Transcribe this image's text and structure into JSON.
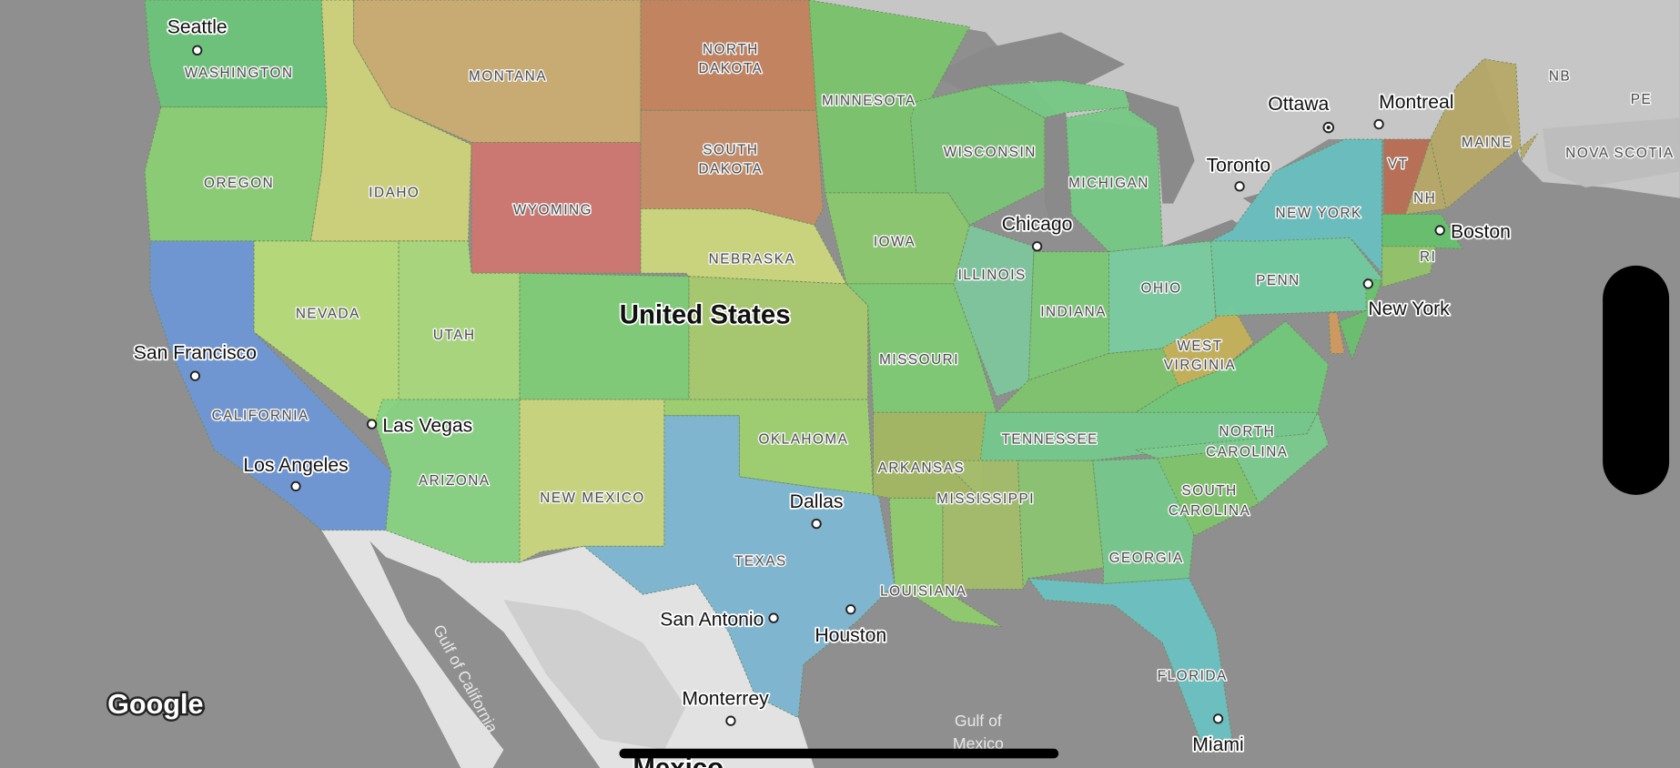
{
  "map": {
    "country_label": "United States",
    "country_label_bottom": "Mexico",
    "attribution": "Google",
    "water_labels": {
      "gulf_of_mexico_1": "Gulf of",
      "gulf_of_mexico_2": "Mexico",
      "gulf_of_california": "Gulf of California"
    },
    "colors": {
      "water": "#8f8f8f",
      "canada_land": "#c6c6c6",
      "mexico_land": "#e2e2e2",
      "lakes": "#8a8a8a"
    },
    "states": {
      "washington": {
        "label": "WASHINGTON",
        "color": "#6cc47a"
      },
      "oregon": {
        "label": "OREGON",
        "color": "#8ccf74"
      },
      "california": {
        "label": "CALIFORNIA",
        "color": "#6f97d6"
      },
      "nevada": {
        "label": "NEVADA",
        "color": "#b7dc78"
      },
      "idaho": {
        "label": "IDAHO",
        "color": "#cfd27a"
      },
      "montana": {
        "label": "MONTANA",
        "color": "#ccac72"
      },
      "wyoming": {
        "label": "WYOMING",
        "color": "#cf7772"
      },
      "north_dakota": {
        "label_1": "NORTH",
        "label_2": "DAKOTA",
        "color": "#c5835f"
      },
      "south_dakota": {
        "label_1": "SOUTH",
        "label_2": "DAKOTA",
        "color": "#c78d68"
      },
      "nebraska": {
        "label": "NEBRASKA",
        "color": "#cdd67c"
      },
      "utah": {
        "label": "UTAH",
        "color": "#a9d87b"
      },
      "colorado": {
        "label": "",
        "color": "#7fcd78"
      },
      "kansas": {
        "label": "",
        "color": "#a9c96f"
      },
      "arizona": {
        "label": "ARIZONA",
        "color": "#88d383"
      },
      "new_mexico": {
        "label": "NEW MEXICO",
        "color": "#cbd67e"
      },
      "texas": {
        "label": "TEXAS",
        "color": "#80b8d4"
      },
      "oklahoma": {
        "label": "OKLAHOMA",
        "color": "#9ed070"
      },
      "minnesota": {
        "label": "MINNESOTA",
        "color": "#7bc46c"
      },
      "iowa": {
        "label": "IOWA",
        "color": "#8cc86f"
      },
      "missouri": {
        "label": "MISSOURI",
        "color": "#7fcb73"
      },
      "arkansas": {
        "label": "ARKANSAS",
        "color": "#a3b863"
      },
      "louisiana": {
        "label": "LOUISIANA",
        "color": "#8fcc6d"
      },
      "wisconsin": {
        "label": "WISCONSIN",
        "color": "#7ac476"
      },
      "illinois": {
        "label": "ILLINOIS",
        "color": "#7fc69d"
      },
      "michigan": {
        "label": "MICHIGAN",
        "color": "#76c985"
      },
      "indiana": {
        "label": "INDIANA",
        "color": "#7dc876"
      },
      "ohio": {
        "label": "OHIO",
        "color": "#79cda0"
      },
      "kentucky": {
        "label": "",
        "color": "#80c46f"
      },
      "tennessee": {
        "label": "TENNESSEE",
        "color": "#74c88c"
      },
      "mississippi": {
        "label": "MISSISSIPPI",
        "color": "#a5bd6c"
      },
      "alabama": {
        "label": "",
        "color": "#8ac472"
      },
      "georgia": {
        "label": "GEORGIA",
        "color": "#76c78c"
      },
      "florida": {
        "label": "FLORIDA",
        "color": "#6cc2c2"
      },
      "south_carolina": {
        "label_1": "SOUTH",
        "label_2": "CAROLINA",
        "color": "#80c46c"
      },
      "north_carolina": {
        "label_1": "NORTH",
        "label_2": "CAROLINA",
        "color": "#7acb8e"
      },
      "virginia": {
        "label": "",
        "color": "#72c87a"
      },
      "west_virginia": {
        "label_1": "WEST",
        "label_2": "VIRGINIA",
        "color": "#c4b15a"
      },
      "pennsylvania": {
        "label": "PENN",
        "color": "#72cba0"
      },
      "new_york": {
        "label": "NEW YORK",
        "color": "#6abfc0"
      },
      "new_jersey": {
        "label": "",
        "color": "#6cc070"
      },
      "delaware": {
        "label": "",
        "color": "#d09a60"
      },
      "vermont": {
        "label": "VT",
        "color": "#bb6e55"
      },
      "new_hampshire": {
        "label": "NH",
        "color": "#b8a968"
      },
      "maine": {
        "label": "MAINE",
        "color": "#b8a968"
      },
      "massachusetts": {
        "label": "",
        "color": "#66c06d"
      },
      "rhode_island": {
        "label": "RI",
        "color": "#94c46a"
      }
    },
    "provinces": {
      "nb": "NB",
      "pe": "PE",
      "nova_scotia": "NOVA SCOTIA"
    },
    "cities": {
      "seattle": "Seattle",
      "ottawa": "Ottawa",
      "montreal": "Montreal",
      "toronto": "Toronto",
      "chicago": "Chicago",
      "boston": "Boston",
      "new_york": "New York",
      "san_francisco": "San Francisco",
      "las_vegas": "Las Vegas",
      "los_angeles": "Los Angeles",
      "dallas": "Dallas",
      "san_antonio": "San Antonio",
      "houston": "Houston",
      "monterrey": "Monterrey",
      "miami": "Miami"
    }
  }
}
